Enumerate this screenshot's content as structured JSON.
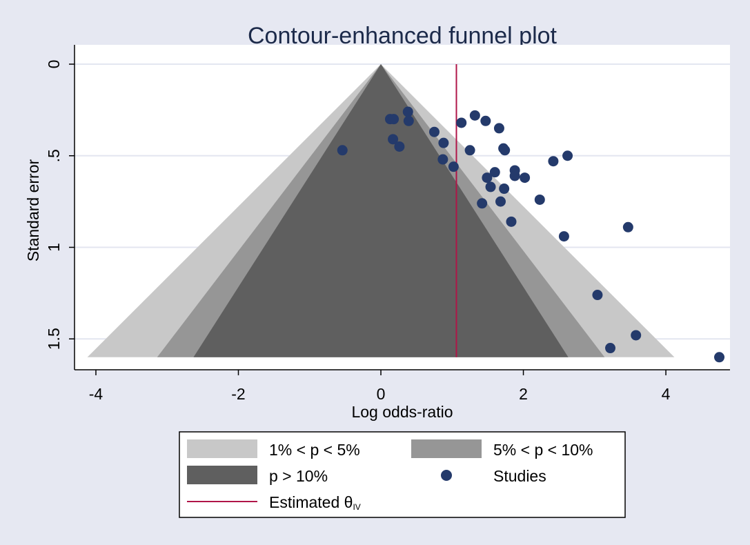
{
  "chart_data": {
    "type": "scatter",
    "title": "Contour-enhanced funnel plot",
    "xlabel": "Log odds-ratio",
    "ylabel": "Standard error",
    "xlim": [
      -4.3,
      4.9
    ],
    "ylim": [
      0,
      1.67
    ],
    "y_reversed": true,
    "grid": true,
    "xticks": [
      -4,
      -2,
      0,
      2,
      4
    ],
    "xtick_labels": [
      "-4",
      "-2",
      "0",
      "2",
      "4"
    ],
    "yticks": [
      0,
      0.5,
      1,
      1.5
    ],
    "ytick_labels": [
      "0",
      ".5",
      "1",
      "1.5"
    ],
    "contours": {
      "se_max": 1.6,
      "outer_half_width": 4.12,
      "mid_half_width": 3.14,
      "inner_half_width": 2.63,
      "outer_color": "#c8c8c8",
      "mid_color": "#969696",
      "inner_color": "#5f5f5f"
    },
    "estimate": {
      "value": 1.06,
      "color": "#b01548"
    },
    "series": [
      {
        "name": "Studies",
        "color": "#243a6b",
        "points": [
          [
            -0.54,
            0.47
          ],
          [
            0.13,
            0.3
          ],
          [
            0.18,
            0.3
          ],
          [
            0.38,
            0.26
          ],
          [
            0.39,
            0.31
          ],
          [
            0.17,
            0.41
          ],
          [
            0.26,
            0.45
          ],
          [
            0.75,
            0.37
          ],
          [
            0.88,
            0.43
          ],
          [
            0.87,
            0.52
          ],
          [
            1.02,
            0.56
          ],
          [
            1.13,
            0.32
          ],
          [
            1.32,
            0.28
          ],
          [
            1.47,
            0.31
          ],
          [
            1.66,
            0.35
          ],
          [
            1.25,
            0.47
          ],
          [
            1.72,
            0.46
          ],
          [
            1.74,
            0.47
          ],
          [
            1.6,
            0.59
          ],
          [
            1.49,
            0.62
          ],
          [
            1.54,
            0.67
          ],
          [
            1.73,
            0.68
          ],
          [
            1.88,
            0.58
          ],
          [
            1.88,
            0.61
          ],
          [
            2.02,
            0.62
          ],
          [
            2.42,
            0.53
          ],
          [
            2.62,
            0.5
          ],
          [
            1.42,
            0.76
          ],
          [
            1.68,
            0.75
          ],
          [
            1.83,
            0.86
          ],
          [
            2.23,
            0.74
          ],
          [
            2.57,
            0.94
          ],
          [
            3.47,
            0.89
          ],
          [
            3.04,
            1.26
          ],
          [
            3.58,
            1.48
          ],
          [
            3.22,
            1.55
          ],
          [
            4.75,
            1.6
          ]
        ]
      }
    ],
    "legend": {
      "placement": "bottom",
      "items": [
        {
          "label": "1% < p < 5%",
          "kind": "box",
          "color": "#c8c8c8"
        },
        {
          "label": "5% < p < 10%",
          "kind": "box",
          "color": "#969696"
        },
        {
          "label": "p > 10%",
          "kind": "box",
          "color": "#5f5f5f"
        },
        {
          "label": "Studies",
          "kind": "marker",
          "color": "#243a6b"
        },
        {
          "label": "Estimated θ",
          "subscript": "IV",
          "kind": "line",
          "color": "#b01548"
        }
      ]
    }
  }
}
